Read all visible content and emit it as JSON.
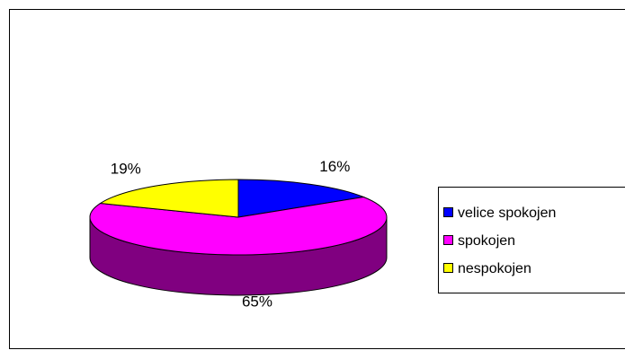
{
  "chart_data": {
    "type": "pie",
    "categories": [
      "velice spokojen",
      "spokojen",
      "nespokojen"
    ],
    "values": [
      16,
      65,
      19
    ],
    "value_labels": [
      "16%",
      "65%",
      "19%"
    ],
    "colors": [
      "#0000ff",
      "#ff00ff",
      "#ffff00"
    ],
    "side_color": "#800080",
    "legend": "right"
  }
}
